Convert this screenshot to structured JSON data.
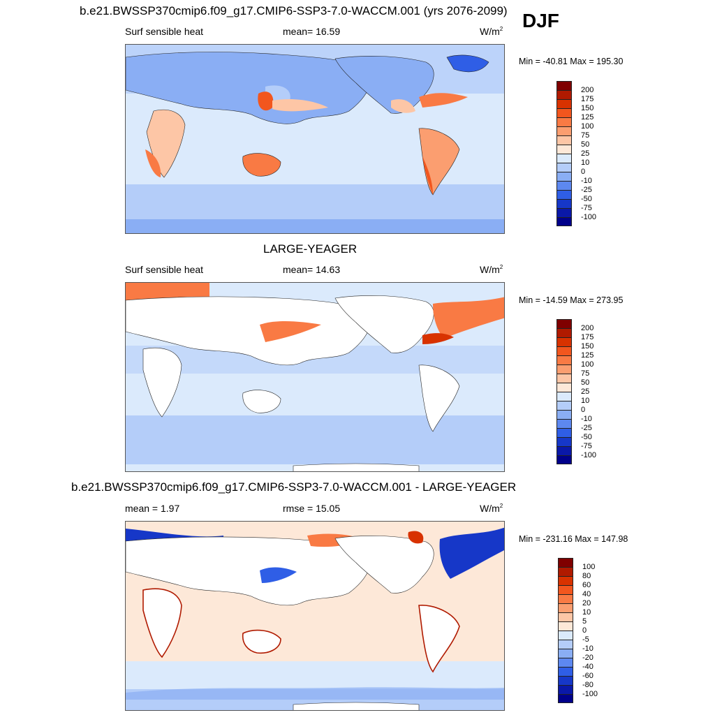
{
  "season": "DJF",
  "panels": [
    {
      "title": "b.e21.BWSSP370cmip6.f09_g17.CMIP6-SSP3-7.0-WACCM.001 (yrs 2076-2099)",
      "left_label": "Surf sensible heat",
      "center_label": "mean=  16.59",
      "units_base": "W/m",
      "units_exp": "2",
      "minmax": "Min = -40.81 Max = 195.30",
      "colorbar_labels": [
        "200",
        "175",
        "150",
        "125",
        "100",
        "75",
        "50",
        "25",
        "10",
        "0",
        "-10",
        "-25",
        "-50",
        "-75",
        "-100"
      ]
    },
    {
      "title": "LARGE-YEAGER",
      "left_label": "Surf sensible heat",
      "center_label": "mean=  14.63",
      "units_base": "W/m",
      "units_exp": "2",
      "minmax": "Min = -14.59 Max = 273.95",
      "colorbar_labels": [
        "200",
        "175",
        "150",
        "125",
        "100",
        "75",
        "50",
        "25",
        "10",
        "0",
        "-10",
        "-25",
        "-50",
        "-75",
        "-100"
      ]
    },
    {
      "title": "b.e21.BWSSP370cmip6.f09_g17.CMIP6-SSP3-7.0-WACCM.001 - LARGE-YEAGER",
      "left_label": "mean =   1.97",
      "center_label": "rmse =  15.05",
      "units_base": "W/m",
      "units_exp": "2",
      "minmax": "Min = -231.16 Max = 147.98",
      "colorbar_labels": [
        "100",
        "80",
        "60",
        "40",
        "20",
        "10",
        "5",
        "0",
        "-5",
        "-10",
        "-20",
        "-40",
        "-60",
        "-80",
        "-100"
      ]
    }
  ],
  "colors": {
    "scale": [
      "#7f0000",
      "#b01a00",
      "#d83200",
      "#f2561e",
      "#f97a44",
      "#fb9e70",
      "#fdc6a6",
      "#fde8d8",
      "#dbeafc",
      "#b4cdf9",
      "#8aaef4",
      "#5d88f0",
      "#2f5ee6",
      "#1637c8",
      "#0a18a8",
      "#00008a"
    ],
    "ocean_light": "#dbeafc",
    "ocean_mid": "#b4cdf9",
    "land_white": "#ffffff"
  }
}
